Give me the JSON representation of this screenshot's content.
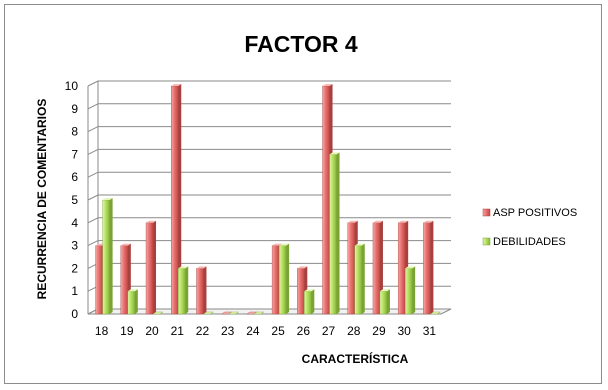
{
  "chart_data": {
    "type": "bar",
    "title": "FACTOR 4",
    "xlabel": "CARACTERÍSTICA",
    "ylabel": "RECURRENCIA DE COMENTARIOS",
    "categories": [
      "18",
      "19",
      "20",
      "21",
      "22",
      "23",
      "24",
      "25",
      "26",
      "27",
      "28",
      "29",
      "30",
      "31"
    ],
    "series": [
      {
        "name": "ASP POSITIVOS",
        "color": "#e8716f",
        "values": [
          3,
          3,
          4,
          10,
          2,
          0,
          0,
          3,
          2,
          10,
          4,
          4,
          4,
          4
        ]
      },
      {
        "name": "DEBILIDADES",
        "color": "#b5e261",
        "values": [
          5,
          1,
          0,
          2,
          0,
          0,
          0,
          3,
          1,
          7,
          3,
          1,
          2,
          0
        ]
      }
    ],
    "ylim": [
      0,
      10
    ],
    "yticks": [
      "0",
      "1",
      "2",
      "3",
      "4",
      "5",
      "6",
      "7",
      "8",
      "9",
      "10"
    ],
    "grid": true,
    "legend": "right",
    "style": "3d-clustered"
  }
}
